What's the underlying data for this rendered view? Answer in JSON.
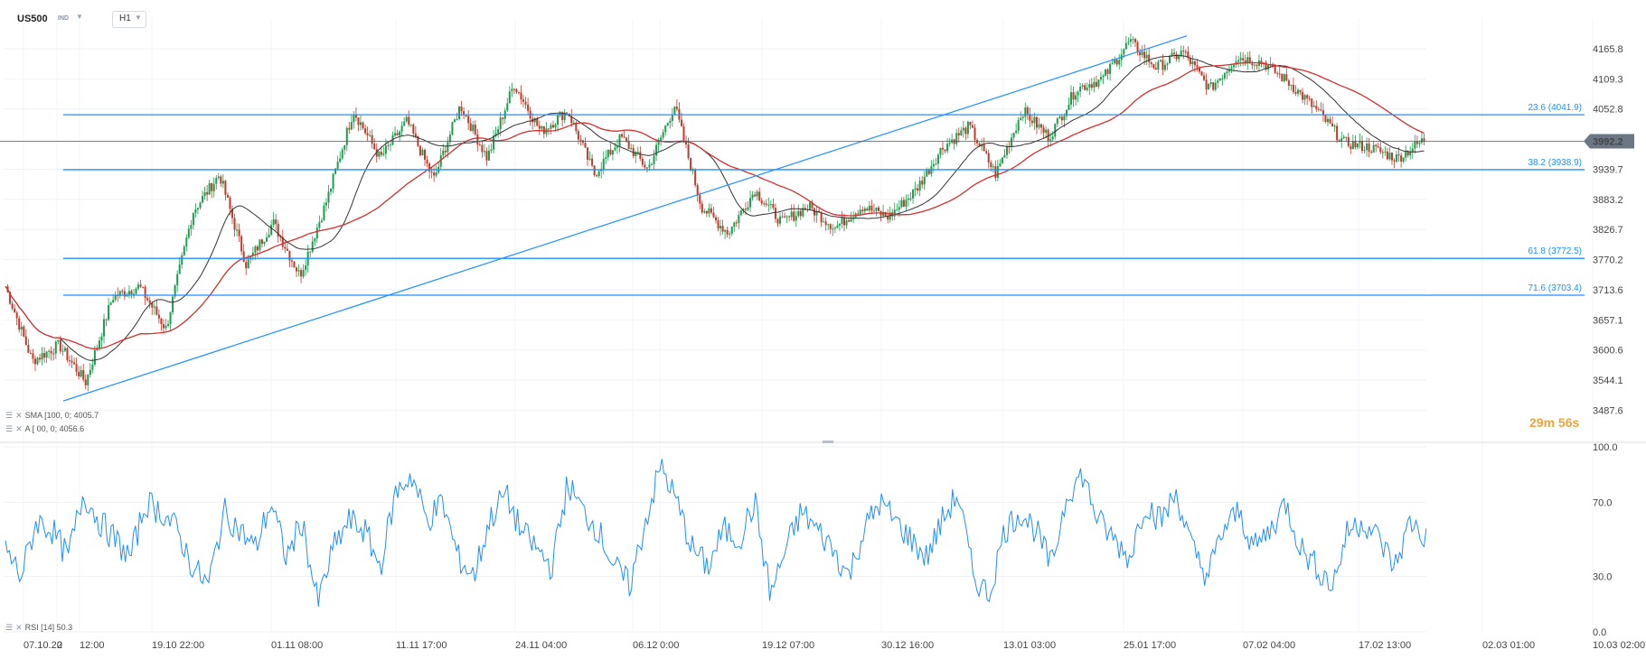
{
  "toolbar": {
    "symbol": "US500",
    "market": "IND",
    "timeframe": "H1",
    "caret_icon": "chevron-down-icon"
  },
  "indicators": {
    "sma1": "SMA [100, 0; 4005.7",
    "sma2": "A [ 00, 0; 4056.6",
    "rsi": "RSI [14] 50.3"
  },
  "countdown": "29m 56s",
  "chart_data": [
    {
      "type": "candlestick",
      "symbol": "US500",
      "timeframe": "H1",
      "yticks": [
        4165.8,
        4109.3,
        4052.8,
        3939.7,
        3883.2,
        3826.7,
        3770.2,
        3713.6,
        3657.1,
        3600.6,
        3544.1,
        3487.6
      ],
      "ylim": [
        3470,
        4190
      ],
      "last_price": 3992.2,
      "xticks": [
        "07.10.20",
        "2",
        "12:00",
        "19.10 22:00",
        "01.11 08:00",
        "11.11 17:00",
        "24.11 04:00",
        "06.12",
        "0:00",
        "19.12 07:00",
        "30.12 16:00",
        "13.01 03:00",
        "25.01 17:00",
        "07.02 04:00",
        "17.02 13:00",
        "02.03 01:00",
        "10.03 02:00"
      ],
      "fibonacci": [
        {
          "label": "23.6 (4041.9)",
          "value": 4041.9
        },
        {
          "label": "38.2 (3938.9)",
          "value": 3938.9
        },
        {
          "label": "61.8 (3772.5)",
          "value": 3772.5
        },
        {
          "label": "71.6 (3703.4)",
          "value": 3703.4
        }
      ],
      "trendline": {
        "start": 3505,
        "end": 4190
      },
      "colors": {
        "up": "#1a9e4b",
        "down": "#c0392b",
        "sma_fast": "#333333",
        "sma_slow": "#d32f2f",
        "fib": "#1e90ff",
        "price_tag": "#6b7785"
      },
      "swings": [
        3720,
        3580,
        3610,
        3540,
        3700,
        3720,
        3640,
        3860,
        3930,
        3760,
        3840,
        3740,
        3880,
        4050,
        3960,
        4030,
        3920,
        4060,
        3960,
        4100,
        4010,
        4050,
        3930,
        4000,
        3940,
        4060,
        3870,
        3820,
        3900,
        3840,
        3870,
        3830,
        3870,
        3850,
        3900,
        3980,
        4020,
        3930,
        4050,
        4000,
        4090,
        4110,
        4180,
        4130,
        4160,
        4090,
        4150,
        4140,
        4100,
        4050,
        3990,
        3980,
        3960,
        3995
      ]
    },
    {
      "type": "line",
      "name": "RSI [14]",
      "last_value": 50.3,
      "yticks": [
        100.0,
        70.0,
        30.0,
        0.0
      ],
      "ylim": [
        0,
        100
      ],
      "color": "#1e90ff",
      "values": [
        45,
        30,
        60,
        55,
        40,
        75,
        60,
        50,
        40,
        70,
        65,
        55,
        35,
        25,
        65,
        55,
        45,
        70,
        40,
        60,
        15,
        45,
        60,
        55,
        35,
        75,
        85,
        60,
        70,
        40,
        30,
        60,
        75,
        55,
        45,
        35,
        80,
        65,
        55,
        35,
        25,
        60,
        90,
        70,
        45,
        35,
        55,
        50,
        70,
        20,
        45,
        65,
        55,
        45,
        30,
        55,
        70,
        60,
        50,
        40,
        60,
        75,
        30,
        20,
        55,
        65,
        55,
        35,
        75,
        85,
        60,
        50,
        40,
        70,
        60,
        75,
        45,
        30,
        55,
        65,
        45,
        55,
        70,
        45,
        35,
        25,
        55,
        60,
        50,
        35,
        60,
        50
      ]
    }
  ]
}
